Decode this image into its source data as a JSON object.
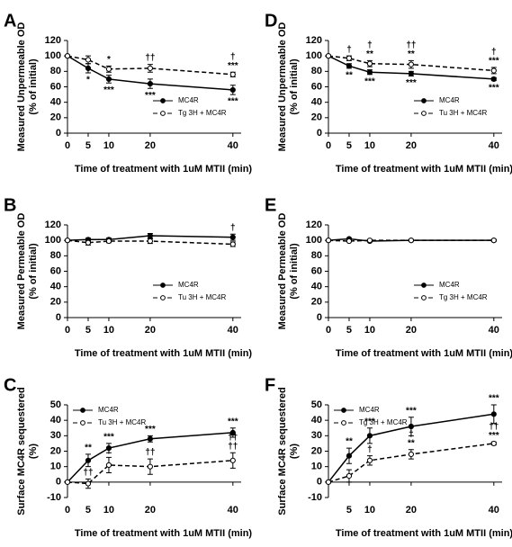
{
  "chart_data": [
    {
      "type": "line",
      "panel": "A",
      "ylabel": [
        "Measured Unpermeable OD",
        "(% of initial)"
      ],
      "xlabel": "Time of treatment with 1uM MTII (min)",
      "x": [
        0,
        5,
        10,
        20,
        40
      ],
      "xlim": [
        0,
        42
      ],
      "xticks": [
        0,
        5,
        10,
        20,
        40
      ],
      "ylim": [
        0,
        120
      ],
      "yticks": [
        0,
        20,
        40,
        60,
        80,
        100,
        120
      ],
      "legend": "lower right",
      "series": [
        {
          "name": "MC4R",
          "color": "#000000",
          "linestyle": "solid",
          "marker_fill": "#000000",
          "values": [
            100,
            84,
            70,
            64,
            56
          ],
          "errors": [
            0,
            6,
            5,
            6,
            6
          ],
          "annotation_position": "below",
          "annotations": [
            null,
            [
              "*"
            ],
            [
              "***"
            ],
            [
              "***"
            ],
            [
              "***"
            ]
          ]
        },
        {
          "name": "Tg 3H + MC4R",
          "color": "#000000",
          "linestyle": "dashed",
          "marker_fill": "#ffffff",
          "values": [
            100,
            95,
            83,
            84,
            76
          ],
          "errors": [
            0,
            5,
            4,
            5,
            3
          ],
          "annotation_position": "above",
          "annotations": [
            null,
            null,
            [
              "*"
            ],
            [
              "††"
            ],
            [
              "***",
              "†"
            ]
          ]
        }
      ]
    },
    {
      "type": "line",
      "panel": "D",
      "ylabel": [
        "Measured Unpermeable OD",
        "(% of initial)"
      ],
      "xlabel": "Time of treatment with 1uM MTII (min)",
      "x": [
        0,
        5,
        10,
        20,
        40
      ],
      "xlim": [
        0,
        42
      ],
      "xticks": [
        0,
        5,
        10,
        20,
        40
      ],
      "ylim": [
        0,
        120
      ],
      "yticks": [
        0,
        20,
        40,
        60,
        80,
        100,
        120
      ],
      "legend": "lower right",
      "series": [
        {
          "name": "MC4R",
          "color": "#000000",
          "linestyle": "solid",
          "marker_fill": "#000000",
          "values": [
            100,
            87,
            79,
            77,
            70
          ],
          "errors": [
            0,
            3,
            3,
            3,
            2
          ],
          "annotation_position": "below",
          "annotations": [
            null,
            [
              "**"
            ],
            [
              "***"
            ],
            [
              "***"
            ],
            [
              "***"
            ]
          ]
        },
        {
          "name": "Tu 3H + MC4R",
          "color": "#000000",
          "linestyle": "dashed",
          "marker_fill": "#ffffff",
          "values": [
            100,
            97,
            90,
            89,
            81
          ],
          "errors": [
            0,
            3,
            4,
            5,
            4
          ],
          "annotation_position": "above",
          "annotations": [
            null,
            [
              "†"
            ],
            [
              "**",
              "†"
            ],
            [
              "**",
              "††"
            ],
            [
              "***",
              "†"
            ]
          ]
        }
      ]
    },
    {
      "type": "line",
      "panel": "B",
      "ylabel": [
        "Measured Permeable OD",
        "(% of initial)"
      ],
      "xlabel": "Time of treatment with 1uM MTII (min)",
      "x": [
        0,
        5,
        10,
        20,
        40
      ],
      "xlim": [
        0,
        42
      ],
      "xticks": [
        0,
        5,
        10,
        20,
        40
      ],
      "ylim": [
        0,
        120
      ],
      "yticks": [
        0,
        20,
        40,
        60,
        80,
        100,
        120
      ],
      "legend": "lower right",
      "series": [
        {
          "name": "MC4R",
          "color": "#000000",
          "linestyle": "solid",
          "marker_fill": "#000000",
          "values": [
            100,
            101,
            101,
            106,
            104
          ],
          "errors": [
            0,
            2,
            2,
            3,
            4
          ],
          "annotation_position": "above",
          "annotations": [
            null,
            null,
            null,
            null,
            [
              "†"
            ]
          ]
        },
        {
          "name": "Tu 3H + MC4R",
          "color": "#000000",
          "linestyle": "dashed",
          "marker_fill": "#ffffff",
          "values": [
            100,
            97,
            99,
            99,
            95
          ],
          "errors": [
            0,
            3,
            2,
            3,
            3
          ],
          "annotation_position": "below",
          "annotations": [
            null,
            null,
            null,
            null,
            null
          ]
        }
      ]
    },
    {
      "type": "line",
      "panel": "E",
      "ylabel": [
        "Measured Permeable OD",
        "(% of initial)"
      ],
      "xlabel": "Time of treatment with 1uM MTII (min)",
      "x": [
        0,
        5,
        10,
        20,
        40
      ],
      "xlim": [
        0,
        42
      ],
      "xticks": [
        0,
        5,
        10,
        20,
        40
      ],
      "ylim": [
        0,
        120
      ],
      "yticks": [
        0,
        20,
        40,
        60,
        80,
        100,
        120
      ],
      "legend": "lower right",
      "series": [
        {
          "name": "MC4R",
          "color": "#000000",
          "linestyle": "solid",
          "marker_fill": "#000000",
          "values": [
            100,
            102,
            99,
            100,
            100
          ],
          "errors": [
            0,
            1,
            1,
            1,
            1
          ],
          "annotation_position": "above",
          "annotations": [
            null,
            null,
            null,
            null,
            null
          ]
        },
        {
          "name": "Tg 3H + MC4R",
          "color": "#000000",
          "linestyle": "dashed",
          "marker_fill": "#ffffff",
          "values": [
            100,
            99,
            100,
            100,
            100
          ],
          "errors": [
            0,
            1,
            1,
            1,
            1
          ],
          "annotation_position": "below",
          "annotations": [
            null,
            null,
            null,
            null,
            null
          ]
        }
      ]
    },
    {
      "type": "line",
      "panel": "C",
      "ylabel": [
        "Surface MC4R sequestered",
        "(%)"
      ],
      "xlabel": "Time of treatment with 1uM MTII (min)",
      "x": [
        0,
        5,
        10,
        20,
        40
      ],
      "xlim": [
        0,
        42
      ],
      "xticks": [
        0,
        5,
        10,
        20,
        40
      ],
      "ylim": [
        -10,
        50
      ],
      "yticks": [
        -10,
        0,
        10,
        20,
        30,
        40,
        50
      ],
      "legend": "upper left",
      "series": [
        {
          "name": "MC4R",
          "color": "#000000",
          "linestyle": "solid",
          "marker_fill": "#000000",
          "values": [
            0,
            14,
            22,
            28,
            32
          ],
          "errors": [
            0,
            4,
            3,
            2,
            3
          ],
          "annotation_position": "above",
          "annotations": [
            null,
            [
              "**"
            ],
            [
              "***"
            ],
            [
              "***"
            ],
            [
              "***"
            ]
          ]
        },
        {
          "name": "Tu 3H + MC4R",
          "color": "#000000",
          "linestyle": "dashed",
          "marker_fill": "#ffffff",
          "values": [
            0,
            -1,
            11,
            10,
            14
          ],
          "errors": [
            0,
            3,
            5,
            5,
            5
          ],
          "annotation_position": "above",
          "annotations": [
            null,
            [
              "††"
            ],
            [
              "†"
            ],
            [
              "††"
            ],
            [
              "††",
              "††"
            ]
          ]
        }
      ]
    },
    {
      "type": "line",
      "panel": "F",
      "ylabel": [
        "Surface MC4R sequestered",
        "(%)"
      ],
      "xlabel": "Time of treatment with 1uM MTII (min)",
      "x": [
        0,
        5,
        10,
        20,
        40
      ],
      "xlim": [
        0,
        42
      ],
      "xticks": [
        5,
        10,
        20,
        40
      ],
      "ylim": [
        -10,
        50
      ],
      "yticks": [
        -10,
        0,
        10,
        20,
        30,
        40,
        50
      ],
      "legend": "upper left",
      "series": [
        {
          "name": "MC4R",
          "color": "#000000",
          "linestyle": "solid",
          "marker_fill": "#000000",
          "values": [
            0,
            17,
            30,
            36,
            44
          ],
          "errors": [
            0,
            5,
            5,
            6,
            6
          ],
          "annotation_position": "above",
          "annotations": [
            null,
            [
              "**"
            ],
            [
              "***"
            ],
            [
              "***"
            ],
            [
              "***"
            ]
          ]
        },
        {
          "name": "Tg 3H + MC4R",
          "color": "#000000",
          "linestyle": "dashed",
          "marker_fill": "#ffffff",
          "values": [
            0,
            4,
            14,
            18,
            25
          ],
          "errors": [
            0,
            4,
            3,
            3,
            1
          ],
          "annotation_position": "above",
          "annotations": [
            null,
            null,
            [
              "†"
            ],
            [
              "**",
              "†"
            ],
            [
              "***",
              "††"
            ]
          ]
        }
      ]
    }
  ]
}
